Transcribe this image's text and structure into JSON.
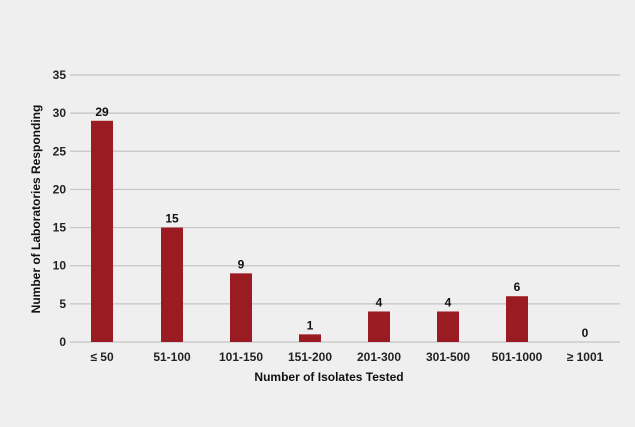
{
  "chart_data": {
    "type": "bar",
    "title": "",
    "xlabel": "Number of Isolates Tested",
    "ylabel": "Number of Laboratories Responding",
    "categories": [
      "≤ 50",
      "51-100",
      "101-150",
      "151-200",
      "201-300",
      "301-500",
      "501-1000",
      "≥ 1001"
    ],
    "values": [
      29,
      15,
      9,
      1,
      4,
      4,
      6,
      0
    ],
    "data_labels": [
      "29",
      "15",
      "9",
      "1",
      "4",
      "4",
      "6",
      "0"
    ],
    "ylim": [
      0,
      35
    ],
    "yticks": [
      0,
      5,
      10,
      15,
      20,
      25,
      30,
      35
    ],
    "grid": true,
    "legend": null,
    "bar_color": "#9b1b22"
  },
  "colors": {
    "background": "#efefef",
    "bar": "#9b1b22",
    "grid": "#c4c4c4",
    "text": "#222222"
  }
}
